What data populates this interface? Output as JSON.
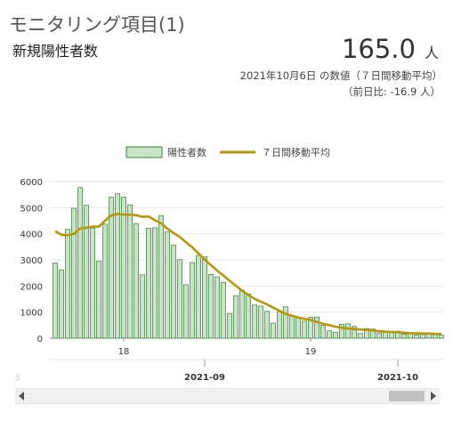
{
  "header": {
    "title": "モニタリング項目(1)",
    "subtitle": "新規陽性者数",
    "value": "165.0",
    "unit": "人",
    "date_note": "2021年10月6日 の数値（７日間移動平均）",
    "diff_note": "（前日比: -16.9 人）"
  },
  "chart_data": {
    "type": "bar",
    "legend": {
      "bar_label": "陽性者数",
      "line_label": "７日間移動平均",
      "placement": "top"
    },
    "colors": {
      "bar_fill": "#c6e5c4",
      "bar_stroke": "#3f7a3f",
      "line": "#b8960a"
    },
    "ylim": [
      0,
      6000
    ],
    "yticks": [
      "0",
      "1000",
      "2000",
      "3000",
      "4000",
      "5000",
      "6000"
    ],
    "grid": true,
    "x_day_ticks": [
      {
        "day": 11,
        "label": "18"
      },
      {
        "day": 41,
        "label": "19"
      }
    ],
    "x_month_ticks": [
      {
        "day": 24,
        "label": "2021-09"
      },
      {
        "day": 55,
        "label": "2021-10"
      }
    ],
    "start_date": "2021-08-08",
    "values": [
      2880,
      2620,
      4170,
      4980,
      5770,
      5090,
      4220,
      2950,
      4370,
      5400,
      5530,
      5400,
      5110,
      4390,
      2430,
      4210,
      4230,
      4700,
      4070,
      3560,
      3010,
      2050,
      2900,
      3170,
      3120,
      2440,
      2350,
      2140,
      950,
      1630,
      1840,
      1690,
      1270,
      1230,
      1030,
      580,
      1010,
      1200,
      850,
      800,
      650,
      800,
      810,
      500,
      280,
      220,
      530,
      550,
      450,
      180,
      370,
      350,
      200,
      280,
      210,
      270,
      150,
      180,
      130,
      140,
      150,
      180,
      120
    ],
    "moving_average": [
      4100,
      3960,
      3940,
      4000,
      4200,
      4230,
      4280,
      4270,
      4500,
      4700,
      4760,
      4740,
      4730,
      4710,
      4650,
      4660,
      4520,
      4400,
      4200,
      4030,
      3880,
      3680,
      3480,
      3250,
      3010,
      2800,
      2590,
      2400,
      2200,
      2010,
      1820,
      1660,
      1510,
      1400,
      1300,
      1170,
      1050,
      930,
      860,
      790,
      740,
      700,
      620,
      560,
      500,
      440,
      400,
      370,
      350,
      330,
      320,
      300,
      270,
      250,
      240,
      230,
      210,
      195,
      190,
      180,
      182,
      165,
      160
    ]
  },
  "scrollbar": {
    "faint_edge_label": "$"
  }
}
